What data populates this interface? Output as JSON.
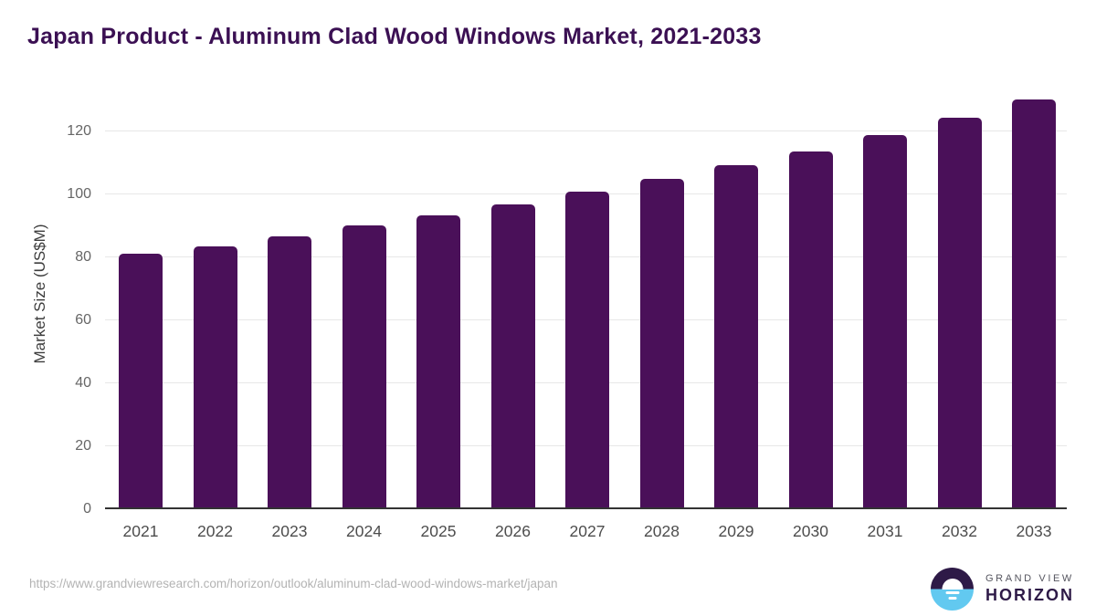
{
  "header": {
    "title": "Japan Product - Aluminum Clad Wood Windows Market, 2021-2033"
  },
  "chart_data": {
    "type": "bar",
    "title": "Japan Product - Aluminum Clad Wood Windows Market, 2021-2033",
    "categories": [
      "2021",
      "2022",
      "2023",
      "2024",
      "2025",
      "2026",
      "2027",
      "2028",
      "2029",
      "2030",
      "2031",
      "2032",
      "2033"
    ],
    "values": [
      80.6,
      82.9,
      86.1,
      89.6,
      92.8,
      96.2,
      100.3,
      104.3,
      108.7,
      113.0,
      118.3,
      123.8,
      129.6
    ],
    "xlabel": "",
    "ylabel": "Market Size (US$M)",
    "ylim": [
      0,
      134
    ],
    "yticks": [
      0,
      20,
      40,
      60,
      80,
      100,
      120
    ],
    "grid": true,
    "legend_position": "none",
    "bar_color": "#4a1059"
  },
  "colors": {
    "bar": "#4a1059",
    "title_text": "#3b1053",
    "gridline": "#e7e7e7",
    "axis_line": "#333333",
    "tick_label": "#4d4d4d",
    "url_text": "#b3b3b3",
    "logo_dark": "#2e1a47",
    "logo_blue": "#62c9f0"
  },
  "footer": {
    "source_url": "https://www.grandviewresearch.com/horizon/outlook/aluminum-clad-wood-windows-market/japan",
    "logo": {
      "line1": "GRAND VIEW",
      "line2": "HORIZON"
    }
  }
}
